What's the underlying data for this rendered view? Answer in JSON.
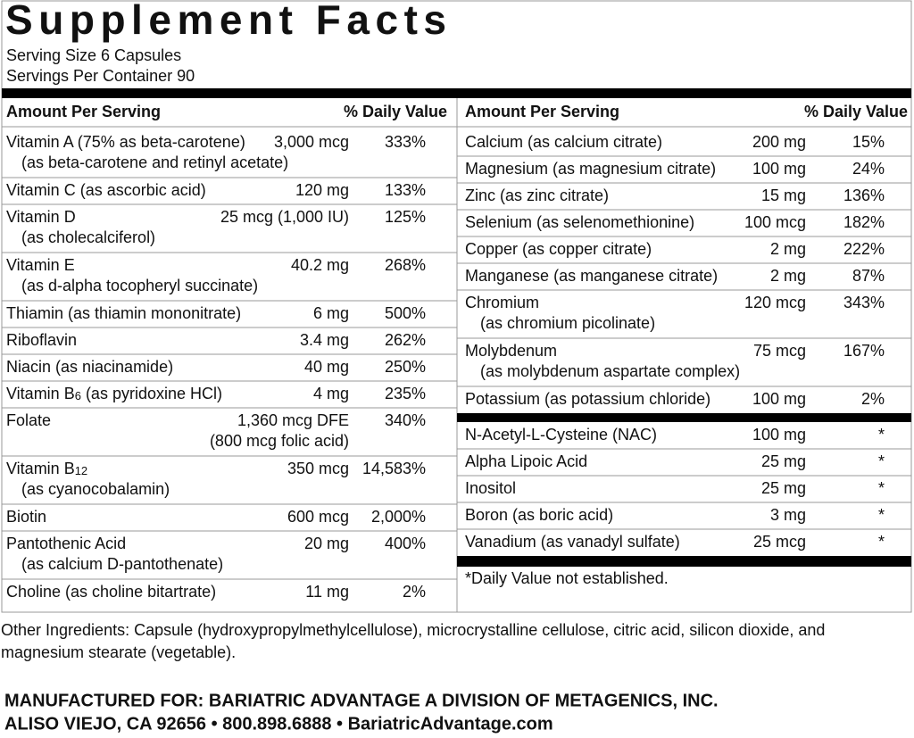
{
  "header": {
    "title": "Supplement Facts",
    "serving_size": "Serving Size 6 Capsules",
    "servings_per_container": "Servings Per Container 90"
  },
  "columns": [
    {
      "amount_header": "Amount Per Serving",
      "dv_header": "% Daily Value",
      "groups": [
        [
          {
            "name": "Vitamin A (75% as beta-carotene)",
            "amount": "3,000 mcg",
            "dv": "333%",
            "line2": "(as beta-carotene and retinyl acetate)"
          },
          {
            "name": "Vitamin C (as ascorbic acid)",
            "amount": "120 mg",
            "dv": "133%"
          },
          {
            "name": "Vitamin D",
            "amount": "25 mcg (1,000 IU)",
            "dv": "125%",
            "line2": "(as cholecalciferol)"
          },
          {
            "name": "Vitamin E",
            "amount": "40.2 mg",
            "dv": "268%",
            "line2": "(as d-alpha tocopheryl succinate)"
          },
          {
            "name": "Thiamin (as thiamin mononitrate)",
            "amount": "6 mg",
            "dv": "500%"
          },
          {
            "name": "Riboflavin",
            "amount": "3.4 mg",
            "dv": "262%"
          },
          {
            "name": "Niacin (as niacinamide)",
            "amount": "40 mg",
            "dv": "250%"
          },
          {
            "name": "Vitamin B",
            "sub": "6",
            "note": "(as pyridoxine HCl)",
            "amount": "4 mg",
            "dv": "235%"
          },
          {
            "name": "Folate",
            "amount": "1,360 mcg DFE",
            "dv": "340%",
            "amount2": "(800 mcg folic acid)"
          },
          {
            "name": "Vitamin B",
            "sub": "12",
            "amount": "350 mcg",
            "dv": "14,583%",
            "line2": "(as cyanocobalamin)"
          },
          {
            "name": "Biotin",
            "amount": "600 mcg",
            "dv": "2,000%"
          },
          {
            "name": "Pantothenic Acid",
            "amount": "20 mg",
            "dv": "400%",
            "line2": "(as calcium D-pantothenate)"
          },
          {
            "name": "Choline (as choline bitartrate)",
            "amount": "11 mg",
            "dv": "2%"
          }
        ]
      ]
    },
    {
      "amount_header": "Amount Per Serving",
      "dv_header": "% Daily Value",
      "groups": [
        [
          {
            "name": "Calcium (as calcium citrate)",
            "amount": "200 mg",
            "dv": "15%"
          },
          {
            "name": "Magnesium (as magnesium citrate)",
            "amount": "100 mg",
            "dv": "24%"
          },
          {
            "name": "Zinc (as zinc citrate)",
            "amount": "15 mg",
            "dv": "136%"
          },
          {
            "name": "Selenium (as selenomethionine)",
            "amount": "100 mcg",
            "dv": "182%"
          },
          {
            "name": "Copper (as copper citrate)",
            "amount": "2 mg",
            "dv": "222%"
          },
          {
            "name": "Manganese (as manganese citrate)",
            "amount": "2 mg",
            "dv": "87%"
          },
          {
            "name": "Chromium",
            "amount": "120 mcg",
            "dv": "343%",
            "line2": "(as chromium picolinate)"
          },
          {
            "name": "Molybdenum",
            "amount": "75 mcg",
            "dv": "167%",
            "line2": "(as molybdenum aspartate complex)"
          },
          {
            "name": "Potassium (as potassium chloride)",
            "amount": "100 mg",
            "dv": "2%"
          }
        ],
        [
          {
            "name": "N-Acetyl-L-Cysteine (NAC)",
            "amount": "100 mg",
            "dv": "*"
          },
          {
            "name": "Alpha Lipoic Acid",
            "amount": "25 mg",
            "dv": "*"
          },
          {
            "name": "Inositol",
            "amount": "25 mg",
            "dv": "*"
          },
          {
            "name": "Boron (as boric acid)",
            "amount": "3 mg",
            "dv": "*"
          },
          {
            "name": "Vanadium (as vanadyl sulfate)",
            "amount": "25 mcg",
            "dv": "*"
          }
        ]
      ],
      "footnote": "*Daily Value not established."
    }
  ],
  "other_ingredients": [
    "Other Ingredients: Capsule (hydroxypropylmethylcellulose), microcrystalline cellulose, citric acid, silicon dioxide, and",
    "magnesium stearate (vegetable)."
  ],
  "manufacturer": [
    "MANUFACTURED FOR: BARIATRIC ADVANTAGE A DIVISION OF METAGENICS, INC.",
    "ALISO VIEJO, CA 92656 • 800.898.6888 • BariatricAdvantage.com"
  ]
}
